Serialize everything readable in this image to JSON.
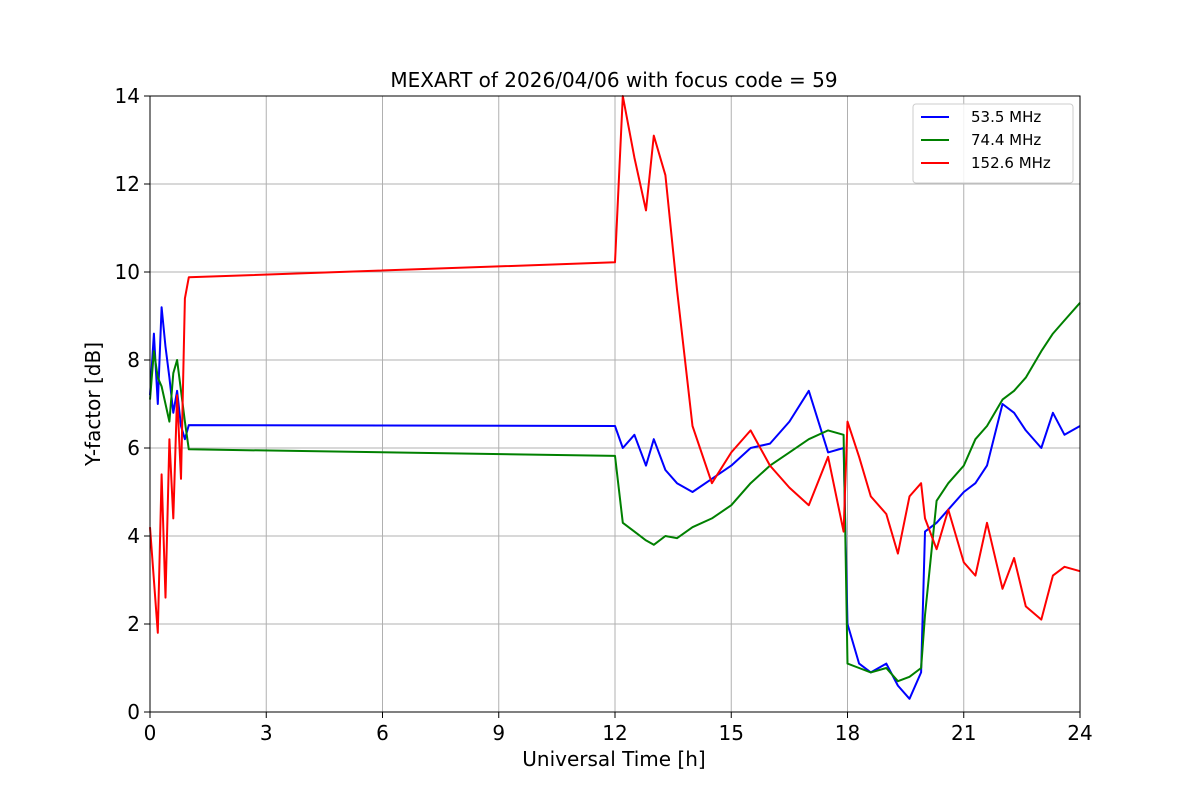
{
  "chart_data": {
    "type": "line",
    "title": "MEXART of 2026/04/06 with focus code = 59",
    "xlabel": "Universal Time [h]",
    "ylabel": "Y-factor [dB]",
    "xlim": [
      0,
      24
    ],
    "ylim": [
      0,
      14
    ],
    "xticks": [
      0,
      3,
      6,
      9,
      12,
      15,
      18,
      21,
      24
    ],
    "yticks": [
      0,
      2,
      4,
      6,
      8,
      10,
      12,
      14
    ],
    "grid": true,
    "legend_position": "top-right",
    "series": [
      {
        "name": "  53.5 MHz",
        "color": "#0000ff",
        "x": [
          0,
          0.1,
          0.2,
          0.3,
          0.4,
          0.5,
          0.6,
          0.7,
          0.8,
          0.9,
          1.0,
          12.0,
          12.2,
          12.5,
          12.8,
          13.0,
          13.3,
          13.6,
          14.0,
          14.5,
          15.0,
          15.5,
          16.0,
          16.5,
          17.0,
          17.5,
          17.9,
          18.0,
          18.3,
          18.6,
          19.0,
          19.3,
          19.6,
          19.9,
          20.0,
          20.3,
          20.6,
          21.0,
          21.3,
          21.6,
          22.0,
          22.3,
          22.6,
          23.0,
          23.3,
          23.6,
          24.0
        ],
        "y": [
          7.2,
          8.6,
          7.0,
          9.2,
          8.3,
          7.6,
          6.8,
          7.3,
          6.5,
          6.2,
          6.52,
          6.5,
          6.0,
          6.3,
          5.6,
          6.2,
          5.5,
          5.2,
          5.0,
          5.3,
          5.6,
          6.0,
          6.1,
          6.6,
          7.3,
          5.9,
          6.0,
          2.0,
          1.1,
          0.9,
          1.1,
          0.6,
          0.3,
          0.9,
          4.1,
          4.3,
          4.6,
          5.0,
          5.2,
          5.6,
          7.0,
          6.8,
          6.4,
          6.0,
          6.8,
          6.3,
          6.5
        ]
      },
      {
        "name": "  74.4 MHz",
        "color": "#008000",
        "x": [
          0,
          0.1,
          0.2,
          0.3,
          0.4,
          0.5,
          0.6,
          0.7,
          0.8,
          0.9,
          1.0,
          12.0,
          12.2,
          12.5,
          12.8,
          13.0,
          13.3,
          13.6,
          14.0,
          14.5,
          15.0,
          15.5,
          16.0,
          16.5,
          17.0,
          17.5,
          17.9,
          18.0,
          18.3,
          18.6,
          19.0,
          19.3,
          19.6,
          19.9,
          20.0,
          20.3,
          20.6,
          21.0,
          21.3,
          21.6,
          22.0,
          22.3,
          22.6,
          23.0,
          23.3,
          23.6,
          24.0
        ],
        "y": [
          7.1,
          8.2,
          7.6,
          7.4,
          7.0,
          6.6,
          7.7,
          8.0,
          7.3,
          6.6,
          5.97,
          5.82,
          4.3,
          4.1,
          3.9,
          3.8,
          4.0,
          3.95,
          4.2,
          4.4,
          4.7,
          5.2,
          5.6,
          5.9,
          6.2,
          6.4,
          6.3,
          1.1,
          1.0,
          0.9,
          1.0,
          0.7,
          0.8,
          1.0,
          2.2,
          4.8,
          5.2,
          5.6,
          6.2,
          6.5,
          7.1,
          7.3,
          7.6,
          8.2,
          8.6,
          8.9,
          9.3
        ]
      },
      {
        "name": "152.6 MHz",
        "color": "#ff0000",
        "x": [
          0,
          0.1,
          0.2,
          0.3,
          0.4,
          0.5,
          0.6,
          0.7,
          0.8,
          0.9,
          1.0,
          12.0,
          12.2,
          12.5,
          12.8,
          13.0,
          13.3,
          13.6,
          14.0,
          14.5,
          15.0,
          15.5,
          16.0,
          16.5,
          17.0,
          17.5,
          17.9,
          18.0,
          18.3,
          18.6,
          19.0,
          19.3,
          19.6,
          19.9,
          20.0,
          20.3,
          20.6,
          21.0,
          21.3,
          21.6,
          22.0,
          22.3,
          22.6,
          23.0,
          23.3,
          23.6,
          24.0
        ],
        "y": [
          4.2,
          3.0,
          1.8,
          5.4,
          2.6,
          6.2,
          4.4,
          7.2,
          5.3,
          9.4,
          9.88,
          10.22,
          14.0,
          12.6,
          11.4,
          13.1,
          12.2,
          9.6,
          6.5,
          5.2,
          5.9,
          6.4,
          5.6,
          5.1,
          4.7,
          5.8,
          4.1,
          6.6,
          5.8,
          4.9,
          4.5,
          3.6,
          4.9,
          5.2,
          4.4,
          3.7,
          4.6,
          3.4,
          3.1,
          4.3,
          2.8,
          3.5,
          2.4,
          2.1,
          3.1,
          3.3,
          3.2
        ]
      }
    ]
  }
}
